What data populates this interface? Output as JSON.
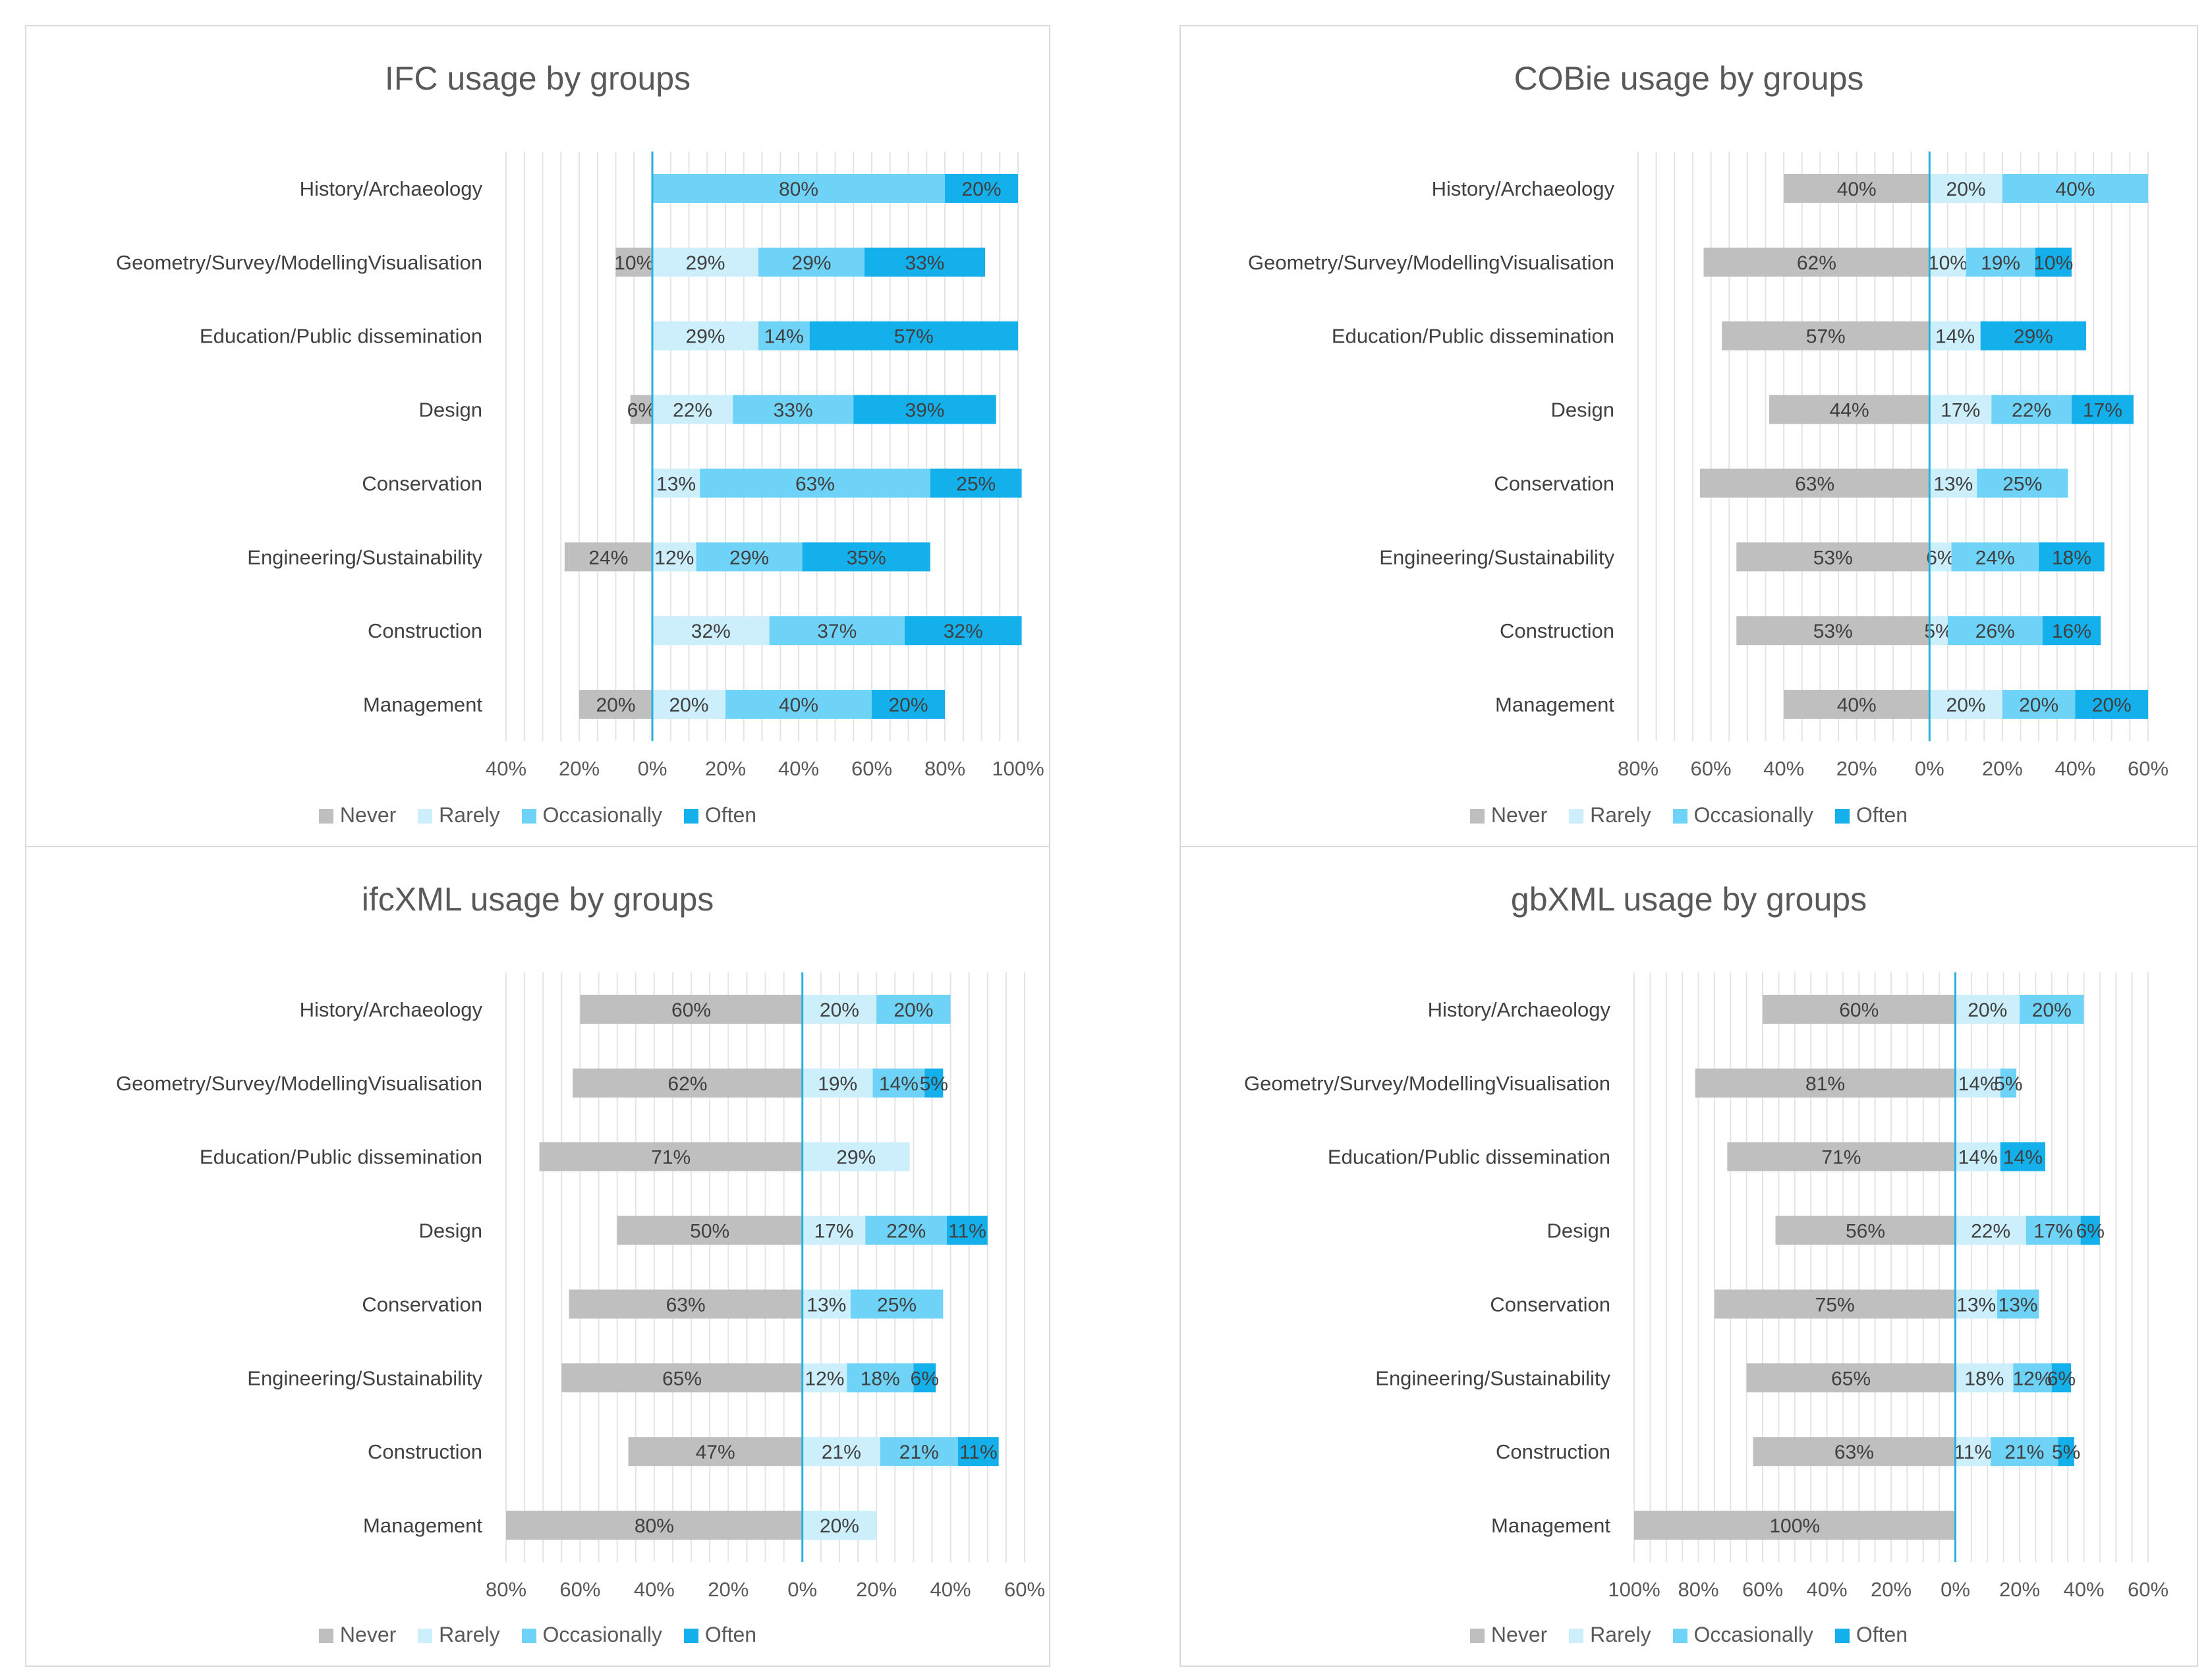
{
  "colors": {
    "Never": "#bfbfbf",
    "Rarely": "#cdeffc",
    "Occasionally": "#6fd3f7",
    "Often": "#14b0eb",
    "axis": "#2ab0e0",
    "grid": "#e4e4e4",
    "text": "#404040"
  },
  "legend": [
    "Never",
    "Rarely",
    "Occasionally",
    "Often"
  ],
  "chart_data": [
    {
      "type": "bar",
      "title": "IFC usage by groups",
      "orientation": "horizontal-diverging",
      "categories": [
        "History/Archaeology",
        "Geometry/Survey/ModellingVisualisation",
        "Education/Public dissemination",
        "Design",
        "Conservation",
        "Engineering/Sustainability",
        "Construction",
        "Management"
      ],
      "series": [
        {
          "name": "Never",
          "values": [
            0,
            10,
            0,
            6,
            0,
            24,
            0,
            20
          ],
          "labels": [
            "",
            "10%",
            "",
            "6%",
            "",
            "24%",
            "",
            "20%"
          ]
        },
        {
          "name": "Rarely",
          "values": [
            0,
            29,
            29,
            22,
            13,
            12,
            32,
            20
          ],
          "labels": [
            "",
            "29%",
            "29%",
            "22%",
            "13%",
            "12%",
            "32%",
            "20%"
          ]
        },
        {
          "name": "Occasionally",
          "values": [
            80,
            29,
            14,
            33,
            63,
            29,
            37,
            40
          ],
          "labels": [
            "80%",
            "29%",
            "14%",
            "33%",
            "63%",
            "29%",
            "37%",
            "40%"
          ]
        },
        {
          "name": "Often",
          "values": [
            20,
            33,
            57,
            39,
            25,
            35,
            32,
            20
          ],
          "labels": [
            "20%",
            "33%",
            "57%",
            "39%",
            "25%",
            "35%",
            "32%",
            "20%"
          ]
        }
      ],
      "xlim": [
        -40,
        100
      ],
      "ticks": [
        -40,
        -20,
        0,
        20,
        40,
        60,
        80,
        100
      ],
      "tick_labels": [
        "40%",
        "20%",
        "0%",
        "20%",
        "40%",
        "60%",
        "80%",
        "100%"
      ]
    },
    {
      "type": "bar",
      "title": "COBie usage by groups",
      "orientation": "horizontal-diverging",
      "categories": [
        "History/Archaeology",
        "Geometry/Survey/ModellingVisualisation",
        "Education/Public dissemination",
        "Design",
        "Conservation",
        "Engineering/Sustainability",
        "Construction",
        "Management"
      ],
      "series": [
        {
          "name": "Never",
          "values": [
            40,
            62,
            57,
            44,
            63,
            53,
            53,
            40
          ],
          "labels": [
            "40%",
            "62%",
            "57%",
            "44%",
            "63%",
            "53%",
            "53%",
            "40%"
          ]
        },
        {
          "name": "Rarely",
          "values": [
            20,
            10,
            14,
            17,
            13,
            6,
            5,
            20
          ],
          "labels": [
            "20%",
            "10%",
            "14%",
            "17%",
            "13%",
            "6%",
            "5%",
            "20%"
          ]
        },
        {
          "name": "Occasionally",
          "values": [
            40,
            19,
            0,
            22,
            25,
            24,
            26,
            20
          ],
          "labels": [
            "40%",
            "19%",
            "",
            "22%",
            "25%",
            "24%",
            "26%",
            "20%"
          ]
        },
        {
          "name": "Often",
          "values": [
            0,
            10,
            29,
            17,
            0,
            18,
            16,
            20
          ],
          "labels": [
            "",
            "10%",
            "29%",
            "17%",
            "",
            "18%",
            "16%",
            "20%"
          ]
        }
      ],
      "xlim": [
        -80,
        60
      ],
      "ticks": [
        -80,
        -60,
        -40,
        -20,
        0,
        20,
        40,
        60
      ],
      "tick_labels": [
        "80%",
        "60%",
        "40%",
        "20%",
        "0%",
        "20%",
        "40%",
        "60%"
      ]
    },
    {
      "type": "bar",
      "title": "ifcXML usage by groups",
      "orientation": "horizontal-diverging",
      "categories": [
        "History/Archaeology",
        "Geometry/Survey/ModellingVisualisation",
        "Education/Public dissemination",
        "Design",
        "Conservation",
        "Engineering/Sustainability",
        "Construction",
        "Management"
      ],
      "series": [
        {
          "name": "Never",
          "values": [
            60,
            62,
            71,
            50,
            63,
            65,
            47,
            80
          ],
          "labels": [
            "60%",
            "62%",
            "71%",
            "50%",
            "63%",
            "65%",
            "47%",
            "80%"
          ]
        },
        {
          "name": "Rarely",
          "values": [
            20,
            19,
            29,
            17,
            13,
            12,
            21,
            20
          ],
          "labels": [
            "20%",
            "19%",
            "29%",
            "17%",
            "13%",
            "12%",
            "21%",
            "20%"
          ]
        },
        {
          "name": "Occasionally",
          "values": [
            20,
            14,
            0,
            22,
            25,
            18,
            21,
            0
          ],
          "labels": [
            "20%",
            "14%",
            "",
            "22%",
            "25%",
            "18%",
            "21%",
            ""
          ]
        },
        {
          "name": "Often",
          "values": [
            0,
            5,
            0,
            11,
            0,
            6,
            11,
            0
          ],
          "labels": [
            "",
            "5%",
            "",
            "11%",
            "",
            "6%",
            "11%",
            ""
          ]
        }
      ],
      "xlim": [
        -80,
        60
      ],
      "ticks": [
        -80,
        -60,
        -40,
        -20,
        0,
        20,
        40,
        60
      ],
      "tick_labels": [
        "80%",
        "60%",
        "40%",
        "20%",
        "0%",
        "20%",
        "40%",
        "60%"
      ]
    },
    {
      "type": "bar",
      "title": "gbXML usage by groups",
      "orientation": "horizontal-diverging",
      "categories": [
        "History/Archaeology",
        "Geometry/Survey/ModellingVisualisation",
        "Education/Public dissemination",
        "Design",
        "Conservation",
        "Engineering/Sustainability",
        "Construction",
        "Management"
      ],
      "series": [
        {
          "name": "Never",
          "values": [
            60,
            81,
            71,
            56,
            75,
            65,
            63,
            100
          ],
          "labels": [
            "60%",
            "81%",
            "71%",
            "56%",
            "75%",
            "65%",
            "63%",
            "100%"
          ]
        },
        {
          "name": "Rarely",
          "values": [
            20,
            14,
            14,
            22,
            13,
            18,
            11,
            0
          ],
          "labels": [
            "20%",
            "14%",
            "14%",
            "22%",
            "13%",
            "18%",
            "11%",
            ""
          ]
        },
        {
          "name": "Occasionally",
          "values": [
            20,
            5,
            0,
            17,
            13,
            12,
            21,
            0
          ],
          "labels": [
            "20%",
            "5%",
            "",
            "17%",
            "13%",
            "12%",
            "21%",
            ""
          ]
        },
        {
          "name": "Often",
          "values": [
            0,
            0,
            14,
            6,
            0,
            6,
            5,
            0
          ],
          "labels": [
            "",
            "",
            "14%",
            "6%",
            "",
            "6%",
            "5%",
            ""
          ]
        }
      ],
      "xlim": [
        -100,
        60
      ],
      "ticks": [
        -100,
        -80,
        -60,
        -40,
        -20,
        0,
        20,
        40,
        60
      ],
      "tick_labels": [
        "100%",
        "80%",
        "60%",
        "40%",
        "20%",
        "0%",
        "20%",
        "40%",
        "60%"
      ]
    }
  ]
}
